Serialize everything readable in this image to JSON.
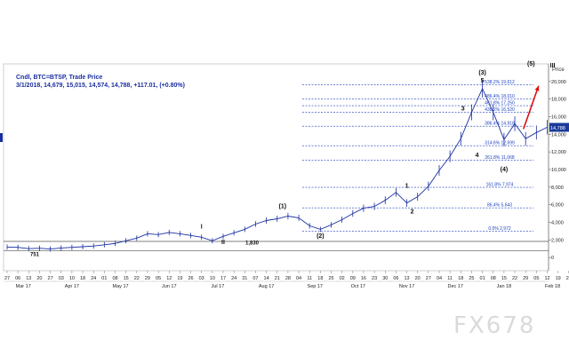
{
  "header": {
    "line1": "Cndl, BTC=BTSP, Trade Price",
    "line2": "3/1/2018, 14,679, 15,015, 14,574, 14,788, +117.01, (+0.80%)"
  },
  "watermark": "FX678",
  "colors": {
    "price": "#1a2fa0",
    "fib": "#1a3fc0",
    "support": "#555555",
    "arrow": "#dd1111",
    "last_price_box": "#1a3a9a"
  },
  "chart_data": {
    "type": "line",
    "title": "",
    "xlabel": "",
    "ylabel": "Price",
    "ylim": [
      -1500,
      22000
    ],
    "y_ticks": [
      {
        "value": 0,
        "label": "0"
      },
      {
        "value": 2000,
        "label": "2,000"
      },
      {
        "value": 4000,
        "label": "4,000"
      },
      {
        "value": 6000,
        "label": "6,000"
      },
      {
        "value": 8000,
        "label": "8,000"
      },
      {
        "value": 10000,
        "label": "10,000"
      },
      {
        "value": 12000,
        "label": "12,000"
      },
      {
        "value": 14000,
        "label": "14,000"
      },
      {
        "value": 16000,
        "label": "16,000"
      },
      {
        "value": 18000,
        "label": "18,000"
      },
      {
        "value": 20000,
        "label": "20,000"
      }
    ],
    "x_days": [
      "27",
      "06",
      "13",
      "20",
      "27",
      "03",
      "10",
      "18",
      "24",
      "01",
      "08",
      "15",
      "22",
      "29",
      "05",
      "12",
      "19",
      "26",
      "03",
      "10",
      "17",
      "24",
      "31",
      "07",
      "14",
      "21",
      "28",
      "04",
      "11",
      "18",
      "25",
      "02",
      "09",
      "16",
      "23",
      "30",
      "06",
      "13",
      "20",
      "27",
      "04",
      "11",
      "18",
      "25",
      "01",
      "08",
      "15",
      "22",
      "29",
      "05",
      "12",
      "19",
      "26"
    ],
    "x_months": [
      {
        "label": "Mar 17",
        "slot": 1.5
      },
      {
        "label": "Apr 17",
        "slot": 6
      },
      {
        "label": "May 17",
        "slot": 10.5
      },
      {
        "label": "Jun 17",
        "slot": 15
      },
      {
        "label": "Jul 17",
        "slot": 19.5
      },
      {
        "label": "Aug 17",
        "slot": 24
      },
      {
        "label": "Sep 17",
        "slot": 28.5
      },
      {
        "label": "Oct 17",
        "slot": 32.5
      },
      {
        "label": "Nov 17",
        "slot": 37
      },
      {
        "label": "Dec 17",
        "slot": 41.5
      },
      {
        "label": "Jan 18",
        "slot": 46
      },
      {
        "label": "Feb 18",
        "slot": 50.5
      }
    ],
    "series": [
      {
        "values": [
          [
            0,
            1180
          ],
          [
            1,
            1150
          ],
          [
            2,
            1000
          ],
          [
            3,
            1050
          ],
          [
            4,
            960
          ],
          [
            5,
            1080
          ],
          [
            6,
            1150
          ],
          [
            7,
            1220
          ],
          [
            8,
            1300
          ],
          [
            9,
            1450
          ],
          [
            10,
            1600
          ],
          [
            11,
            1900
          ],
          [
            12,
            2200
          ],
          [
            13,
            2700
          ],
          [
            14,
            2600
          ],
          [
            15,
            2850
          ],
          [
            16,
            2700
          ],
          [
            17,
            2500
          ],
          [
            18,
            2300
          ],
          [
            19,
            1900
          ],
          [
            20,
            2400
          ],
          [
            21,
            2800
          ],
          [
            22,
            3200
          ],
          [
            23,
            3800
          ],
          [
            24,
            4200
          ],
          [
            25,
            4400
          ],
          [
            26,
            4700
          ],
          [
            27,
            4500
          ],
          [
            28,
            3600
          ],
          [
            29,
            3200
          ],
          [
            30,
            3700
          ],
          [
            31,
            4300
          ],
          [
            32,
            5000
          ],
          [
            33,
            5600
          ],
          [
            34,
            5800
          ],
          [
            35,
            6500
          ],
          [
            36,
            7400
          ],
          [
            37,
            6200
          ],
          [
            38,
            6900
          ],
          [
            39,
            8100
          ],
          [
            40,
            9900
          ],
          [
            41,
            11500
          ],
          [
            42,
            13500
          ],
          [
            43,
            16500
          ],
          [
            44,
            19200
          ],
          [
            45,
            16500
          ],
          [
            46,
            13400
          ],
          [
            47,
            15200
          ],
          [
            48,
            13500
          ],
          [
            49,
            14200
          ],
          [
            50,
            14800
          ]
        ]
      }
    ],
    "fib_levels": [
      {
        "label": "538.2% 19,612",
        "value": 19612
      },
      {
        "label": "486.4% 18,010",
        "value": 18010
      },
      {
        "label": "461.8% 17,250",
        "value": 17250
      },
      {
        "label": "438.2% 16,520",
        "value": 16520
      },
      {
        "label": "386.4% 14,918",
        "value": 14918
      },
      {
        "label": "314.6% 12,699",
        "value": 12699
      },
      {
        "label": "261.8% 11,068",
        "value": 11068
      },
      {
        "label": "161.8% 7,974",
        "value": 7974
      },
      {
        "label": "86.4% 5,643",
        "value": 5643
      },
      {
        "label": "0.0% 2,972",
        "value": 2972
      }
    ],
    "support_levels": [
      {
        "label": "1,830",
        "value": 1830
      },
      {
        "label": "751",
        "value": 751
      }
    ],
    "wave_labels": [
      {
        "text": "I",
        "x": 18,
        "y": 3300
      },
      {
        "text": "II",
        "x": 20,
        "y": 1550
      },
      {
        "text": "(1)",
        "x": 25.5,
        "y": 5600
      },
      {
        "text": "(2)",
        "x": 29,
        "y": 2250
      },
      {
        "text": "1",
        "x": 37,
        "y": 7950
      },
      {
        "text": "2",
        "x": 37.5,
        "y": 5000
      },
      {
        "text": "3",
        "x": 42.2,
        "y": 16700
      },
      {
        "text": "4",
        "x": 43.5,
        "y": 11400
      },
      {
        "text": "5",
        "x": 44,
        "y": 19900
      },
      {
        "text": "(3)",
        "x": 44,
        "y": 20800
      },
      {
        "text": "(4)",
        "x": 46,
        "y": 9800
      },
      {
        "text": "(5)",
        "x": 48.5,
        "y": 21800
      },
      {
        "text": "III",
        "x": 50.5,
        "y": 21600
      }
    ],
    "arrow": {
      "from": [
        47.8,
        14600
      ],
      "to": [
        49.2,
        19500
      ]
    },
    "last_price": {
      "label": "14,788",
      "value": 14788
    },
    "grid": false
  }
}
